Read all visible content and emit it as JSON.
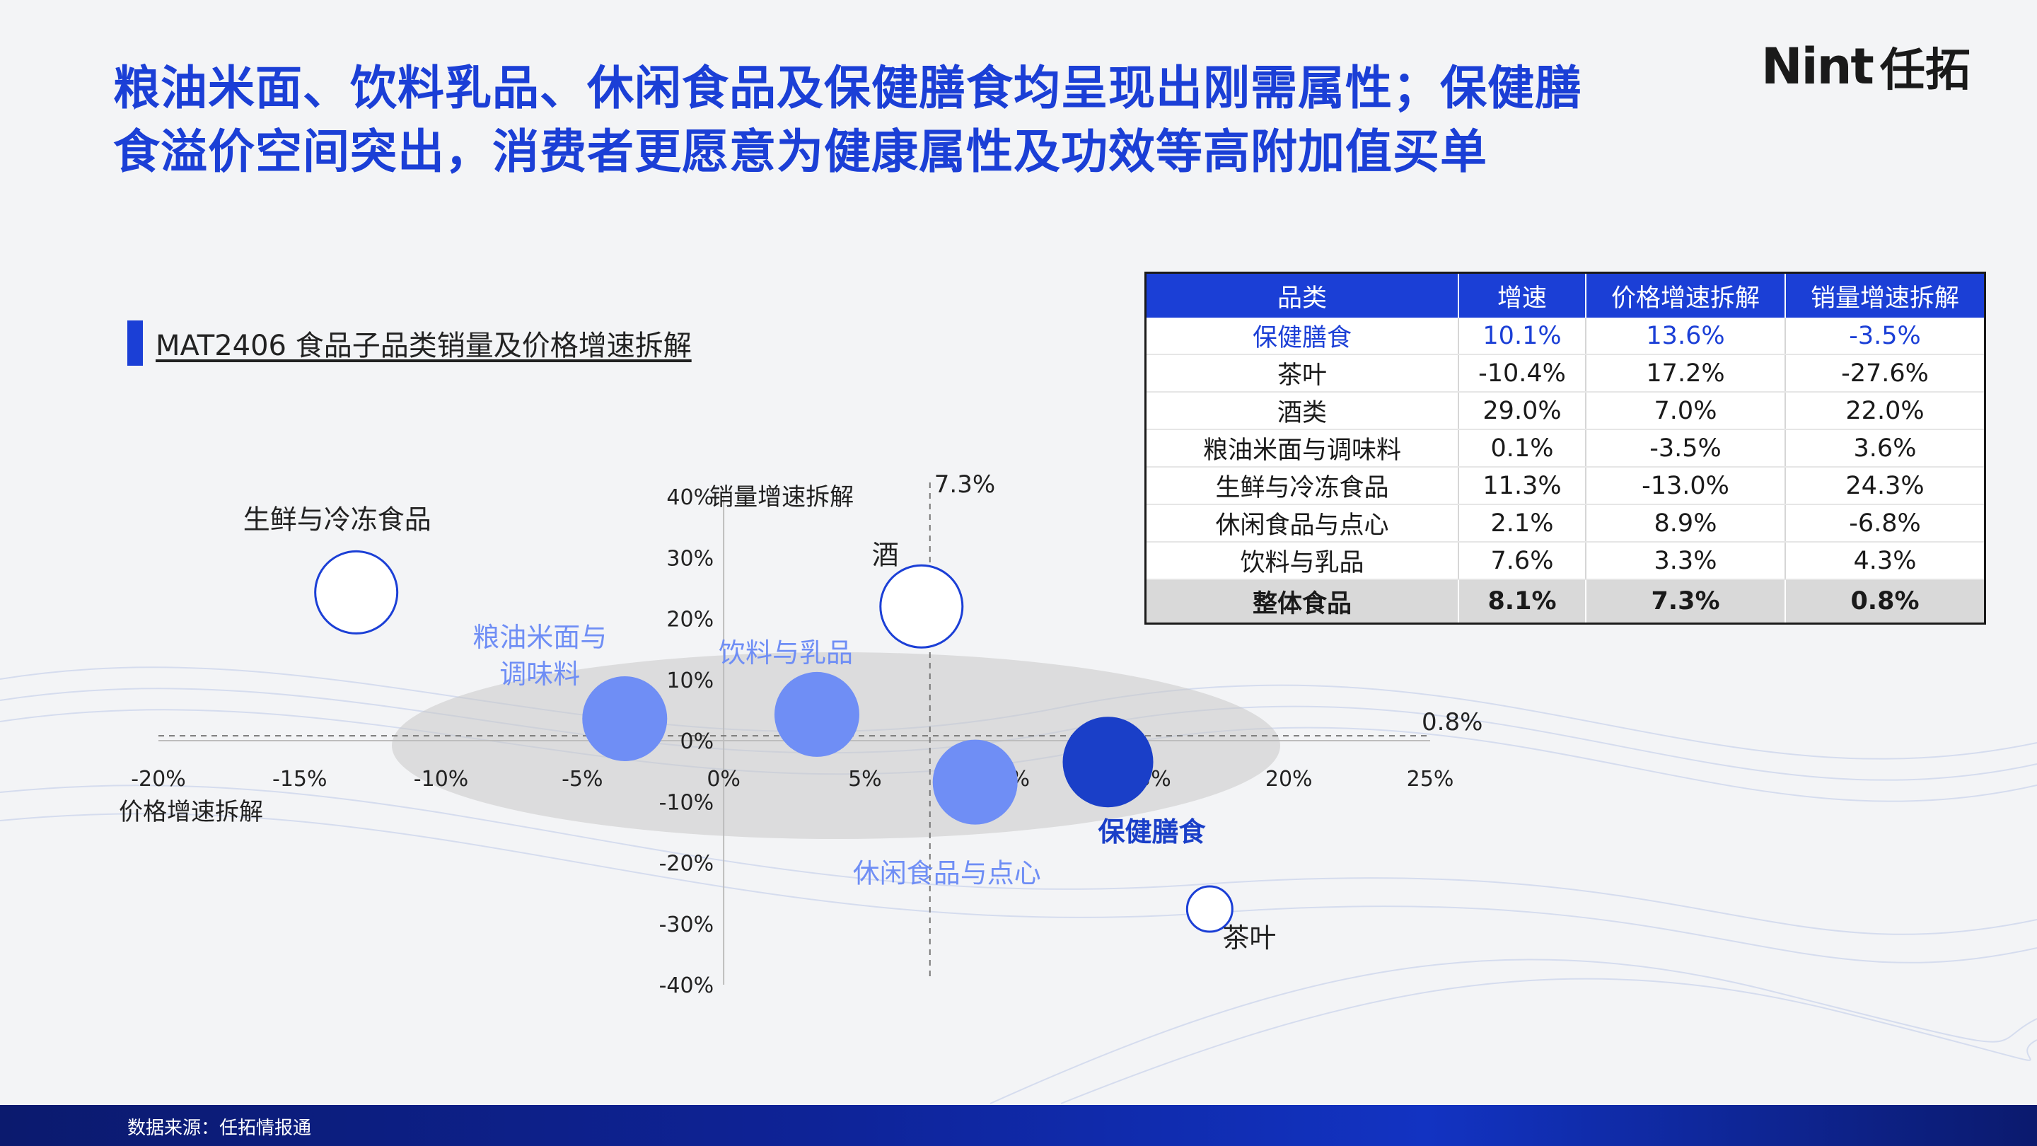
{
  "headline": {
    "line1": "粮油米面、饮料乳品、休闲食品及保健膳食均呈现出刚需属性；保健膳",
    "line2": "食溢价空间突出，消费者更愿意为健康属性及功效等高附加值买单"
  },
  "logo": {
    "latin": "Nint",
    "cn": "任拓"
  },
  "subtitle": "MAT2406 食品子品类销量及价格增速拆解",
  "colors": {
    "brand_blue": "#1b3fd6",
    "bubble_light": "#6f8ef5",
    "bubble_dark": "#1a3fc8",
    "label_light": "#6f8ef5"
  },
  "chart_data": {
    "type": "scatter",
    "xlabel": "价格增速拆解",
    "ylabel": "销量增速拆解",
    "xlim": [
      -20,
      25
    ],
    "ylim": [
      -40,
      40
    ],
    "x_ticks": [
      "-20%",
      "-15%",
      "-10%",
      "-5%",
      "0%",
      "5%",
      "10%",
      "15%",
      "20%",
      "25%"
    ],
    "y_ticks": [
      "40%",
      "30%",
      "20%",
      "10%",
      "0%",
      "-10%",
      "-20%",
      "-30%",
      "-40%"
    ],
    "reference_lines": [
      {
        "axis": "x",
        "value": 7.3,
        "label": "7.3%"
      },
      {
        "axis": "y",
        "value": 0.8,
        "label": "0.8%"
      }
    ],
    "grid": false,
    "points": [
      {
        "name": "生鲜与冷冻食品",
        "x": -13.0,
        "y": 24.3,
        "style": "outline",
        "label_lines": [
          "生鲜与冷冻食品"
        ]
      },
      {
        "name": "酒",
        "x": 7.0,
        "y": 22.0,
        "style": "outline",
        "label_lines": [
          "酒"
        ]
      },
      {
        "name": "粮油米面与调味料",
        "x": -3.5,
        "y": 3.6,
        "style": "light",
        "label_lines": [
          "粮油米面与",
          "调味料"
        ]
      },
      {
        "name": "饮料与乳品",
        "x": 3.3,
        "y": 4.3,
        "style": "light",
        "label_lines": [
          "饮料与乳品"
        ]
      },
      {
        "name": "休闲食品与点心",
        "x": 8.9,
        "y": -6.8,
        "style": "light",
        "label_lines": [
          "休闲食品与点心"
        ]
      },
      {
        "name": "保健膳食",
        "x": 13.6,
        "y": -3.5,
        "style": "dark",
        "label_lines": [
          "保健膳食"
        ]
      },
      {
        "name": "茶叶",
        "x": 17.2,
        "y": -27.6,
        "style": "outline",
        "label_lines": [
          "茶叶"
        ]
      }
    ]
  },
  "table": {
    "headers": [
      "品类",
      "增速",
      "价格增速拆解",
      "销量增速拆解"
    ],
    "rows": [
      [
        "保健膳食",
        "10.1%",
        "13.6%",
        "-3.5%"
      ],
      [
        "茶叶",
        "-10.4%",
        "17.2%",
        "-27.6%"
      ],
      [
        "酒类",
        "29.0%",
        "7.0%",
        "22.0%"
      ],
      [
        "粮油米面与调味料",
        "0.1%",
        "-3.5%",
        "3.6%"
      ],
      [
        "生鲜与冷冻食品",
        "11.3%",
        "-13.0%",
        "24.3%"
      ],
      [
        "休闲食品与点心",
        "2.1%",
        "8.9%",
        "-6.8%"
      ],
      [
        "饮料与乳品",
        "7.6%",
        "3.3%",
        "4.3%"
      ]
    ],
    "total": [
      "整体食品",
      "8.1%",
      "7.3%",
      "0.8%"
    ]
  },
  "footer": {
    "source": "数据来源：任拓情报通"
  }
}
